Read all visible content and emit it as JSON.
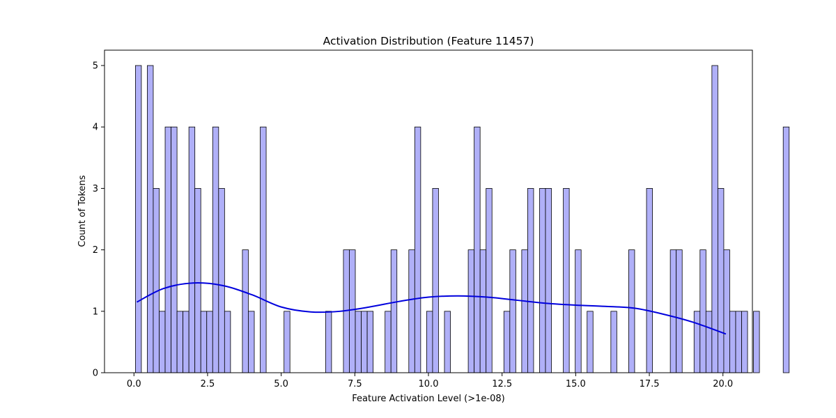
{
  "chart_data": {
    "type": "bar",
    "subtype": "histogram-with-kde",
    "title": "Activation Distribution (Feature 11457)",
    "xlabel": "Feature Activation Level (>1e-08)",
    "ylabel": "Count of Tokens",
    "xlim": [
      -1.0,
      21.0
    ],
    "ylim": [
      0,
      5.25
    ],
    "x_ticks": [
      0.0,
      2.5,
      5.0,
      7.5,
      10.0,
      12.5,
      15.0,
      17.5,
      20.0
    ],
    "x_tick_labels": [
      "0.0",
      "2.5",
      "5.0",
      "7.5",
      "10.0",
      "12.5",
      "15.0",
      "17.5",
      "20.0"
    ],
    "y_ticks": [
      0,
      1,
      2,
      3,
      4,
      5
    ],
    "y_tick_labels": [
      "0",
      "1",
      "2",
      "3",
      "4",
      "5"
    ],
    "bin_start": 0.05,
    "bin_width": 0.2018,
    "bin_counts": [
      5,
      0,
      5,
      3,
      1,
      4,
      4,
      1,
      1,
      4,
      3,
      1,
      1,
      4,
      3,
      1,
      0,
      0,
      2,
      1,
      0,
      4,
      0,
      0,
      0,
      1,
      0,
      0,
      0,
      0,
      0,
      0,
      1,
      0,
      0,
      2,
      2,
      1,
      1,
      1,
      0,
      0,
      1,
      2,
      0,
      0,
      2,
      4,
      0,
      1,
      3,
      0,
      1,
      0,
      0,
      0,
      2,
      4,
      2,
      3,
      0,
      0,
      1,
      2,
      0,
      2,
      3,
      0,
      3,
      3,
      0,
      0,
      3,
      0,
      2,
      0,
      1,
      0,
      0,
      0,
      1,
      0,
      0,
      2,
      0,
      0,
      3,
      0,
      0,
      0,
      2,
      2,
      0,
      0,
      1,
      2,
      1,
      5,
      3,
      2,
      1,
      1,
      1,
      0,
      1,
      0,
      0,
      0,
      0,
      4
    ],
    "kde": {
      "color": "#0000dd",
      "x": [
        0.1,
        1.0,
        2.0,
        3.0,
        4.0,
        5.0,
        6.0,
        7.0,
        8.0,
        9.0,
        10.0,
        11.0,
        12.0,
        13.0,
        14.0,
        15.0,
        16.0,
        17.0,
        18.0,
        19.0,
        20.1
      ],
      "y": [
        1.15,
        1.37,
        1.46,
        1.42,
        1.27,
        1.07,
        0.99,
        1.0,
        1.07,
        1.16,
        1.23,
        1.25,
        1.23,
        1.18,
        1.13,
        1.1,
        1.08,
        1.05,
        0.95,
        0.82,
        0.63
      ]
    },
    "colors": {
      "bar_fill": "#b0b0f8",
      "bar_edge": "#000000",
      "kde_line": "#0000dd"
    },
    "grid": false
  }
}
